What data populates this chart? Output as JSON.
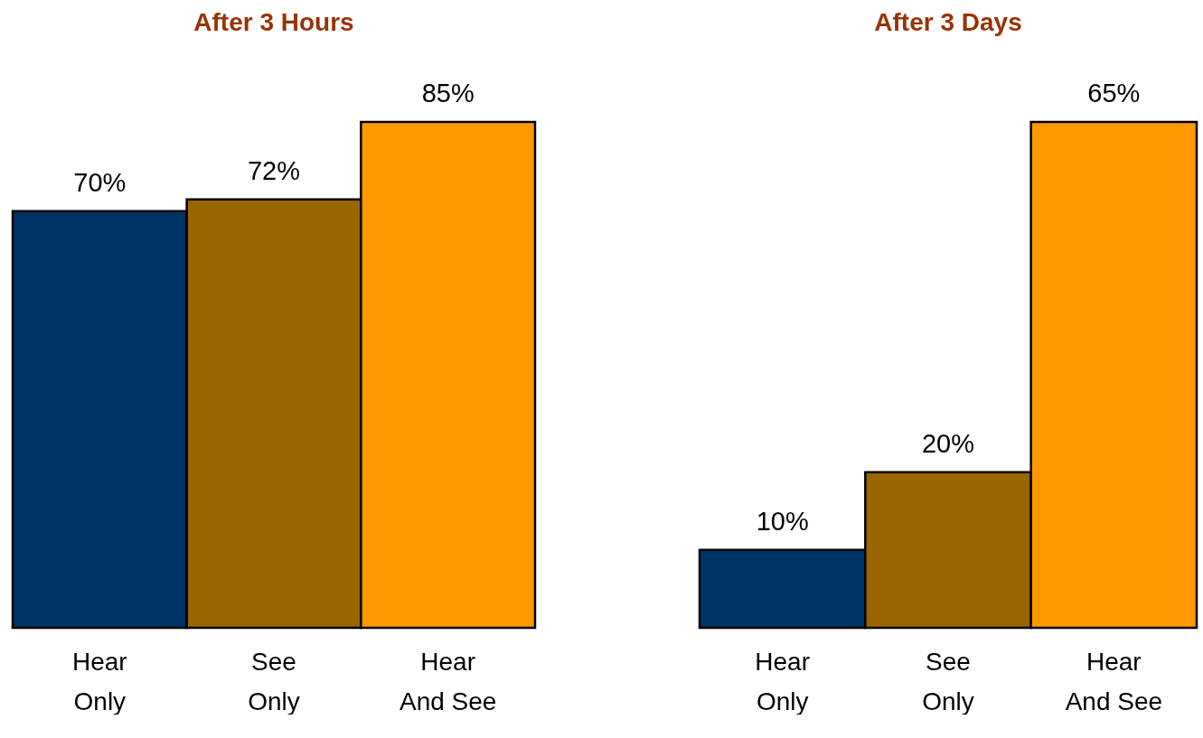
{
  "chart_data": [
    {
      "type": "bar",
      "title": "After 3 Hours",
      "categories": [
        "Hear\nOnly",
        "See\nOnly",
        "Hear\nAnd See"
      ],
      "values": [
        70,
        72,
        85
      ],
      "colors": [
        "#003366",
        "#996600",
        "#ff9900"
      ],
      "value_labels": [
        "70%",
        "72%",
        "85%"
      ]
    },
    {
      "type": "bar",
      "title": "After 3 Days",
      "categories": [
        "Hear\nOnly",
        "See\nOnly",
        "Hear\nAnd See"
      ],
      "values": [
        10,
        20,
        65
      ],
      "colors": [
        "#003366",
        "#996600",
        "#ff9900"
      ],
      "value_labels": [
        "10%",
        "20%",
        "65%"
      ]
    }
  ]
}
